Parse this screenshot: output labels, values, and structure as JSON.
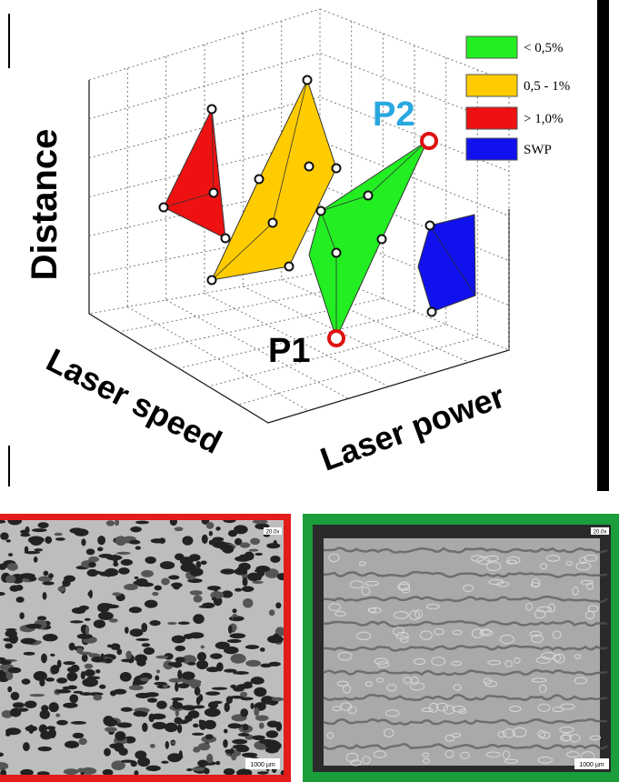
{
  "plot": {
    "axis_labels": {
      "z": "Distance",
      "x": "Laser speed",
      "y": "Laser power"
    },
    "legend": [
      {
        "label": "< 0,5%",
        "color": "#22ee22"
      },
      {
        "label": "0,5 - 1%",
        "color": "#ffcc00"
      },
      {
        "label": "> 1,0%",
        "color": "#ee1111"
      },
      {
        "label": "SWP",
        "color": "#1111ee"
      }
    ],
    "points": {
      "p1": "P1",
      "p2": "P2"
    }
  },
  "micrographs": [
    {
      "magnification": "20.0x",
      "scale_bar": "1000 µm"
    },
    {
      "magnification": "20.0x",
      "scale_bar": "1000 µm"
    }
  ]
}
